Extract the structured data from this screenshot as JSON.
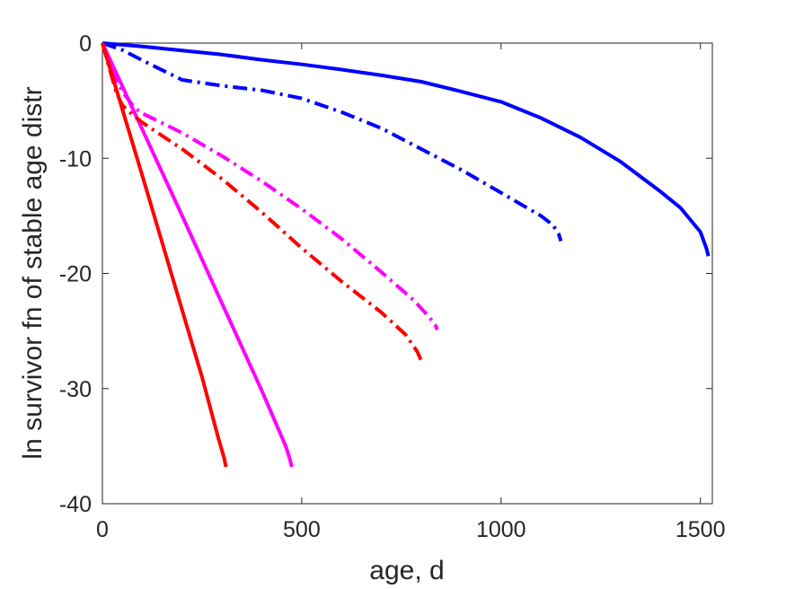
{
  "chart_data": {
    "type": "line",
    "xlabel": "age, d",
    "ylabel": "ln survivor fn of stable age distr",
    "xlim": [
      0,
      1530
    ],
    "ylim": [
      -40,
      0
    ],
    "xticks": [
      0,
      500,
      1000,
      1500
    ],
    "yticks": [
      0,
      -10,
      -20,
      -30,
      -40
    ],
    "grid": false,
    "legend": "none",
    "series": [
      {
        "color": "#0000ff",
        "style": "solid",
        "x": [
          0,
          100,
          200,
          300,
          400,
          500,
          600,
          700,
          800,
          900,
          1000,
          1100,
          1200,
          1300,
          1400,
          1450,
          1500,
          1515,
          1520
        ],
        "y": [
          0,
          -0.3,
          -0.65,
          -1.0,
          -1.45,
          -1.85,
          -2.3,
          -2.8,
          -3.35,
          -4.2,
          -5.1,
          -6.5,
          -8.2,
          -10.3,
          -12.9,
          -14.3,
          -16.4,
          -17.8,
          -18.5
        ]
      },
      {
        "color": "#0000ff",
        "style": "dashdot",
        "x": [
          0,
          50,
          100,
          200,
          300,
          400,
          500,
          600,
          700,
          800,
          900,
          1000,
          1050,
          1100,
          1130,
          1145,
          1150
        ],
        "y": [
          0,
          -0.6,
          -1.5,
          -3.2,
          -3.7,
          -4.1,
          -4.8,
          -6.0,
          -7.4,
          -9.2,
          -11.0,
          -13.0,
          -14.0,
          -15.0,
          -15.8,
          -16.6,
          -17.2
        ]
      },
      {
        "color": "#ff00ff",
        "style": "solid",
        "x": [
          0,
          100,
          200,
          300,
          400,
          460,
          470,
          475
        ],
        "y": [
          0,
          -7.5,
          -15.0,
          -22.6,
          -30.2,
          -35.0,
          -36.1,
          -36.8
        ]
      },
      {
        "color": "#ff00ff",
        "style": "dashdot",
        "x": [
          0,
          25,
          50,
          80,
          100,
          200,
          300,
          400,
          500,
          600,
          700,
          780,
          820,
          835,
          840
        ],
        "y": [
          0,
          -2.5,
          -4.2,
          -5.6,
          -6.1,
          -7.8,
          -9.8,
          -12.0,
          -14.4,
          -17.0,
          -19.9,
          -22.3,
          -23.8,
          -24.5,
          -24.9
        ]
      },
      {
        "color": "#ff0000",
        "style": "solid",
        "x": [
          0,
          100,
          200,
          250,
          290,
          305,
          310
        ],
        "y": [
          0,
          -11.5,
          -23.2,
          -29.0,
          -34.2,
          -36.0,
          -36.8
        ]
      },
      {
        "color": "#ff0000",
        "style": "dashdot",
        "x": [
          0,
          20,
          35,
          50,
          75,
          100,
          200,
          300,
          400,
          500,
          600,
          700,
          760,
          790,
          800
        ],
        "y": [
          0,
          -2.5,
          -4.3,
          -5.4,
          -6.2,
          -6.9,
          -9.2,
          -11.8,
          -14.7,
          -17.8,
          -20.7,
          -23.4,
          -25.3,
          -26.8,
          -27.6
        ]
      }
    ]
  }
}
